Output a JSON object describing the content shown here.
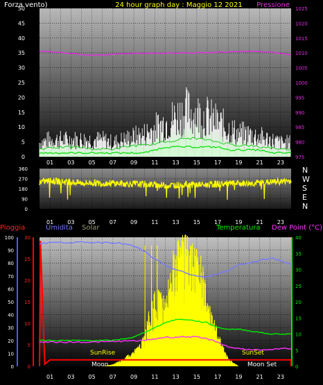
{
  "colors": {
    "wind": "#ffffff",
    "gust": "#ffffff",
    "wind_avg": "#00dd00",
    "pressure": "#e030e0",
    "wind_dir": "#ffff00",
    "rain": "#ff0000",
    "humidity": "#7777ff",
    "solar": "#ffff00",
    "temperature": "#00ee00",
    "dewpoint": "#ff33ff"
  },
  "chart_data": [
    {
      "type": "line",
      "title": "24 hour graph day : Maggio 12 2021",
      "series": [
        {
          "name": "Forza vento",
          "axis": "left",
          "ylim": [
            0,
            50
          ],
          "ticks": [
            "0",
            "5",
            "10",
            "15",
            "20",
            "25",
            "30",
            "35",
            "40",
            "45",
            "50"
          ],
          "x": [
            0,
            1,
            2,
            3,
            4,
            5,
            6,
            7,
            8,
            9,
            10,
            11,
            12,
            13,
            14,
            15,
            16,
            17,
            18,
            19,
            20,
            21,
            22,
            23,
            24
          ],
          "gust": [
            5,
            6,
            6,
            6,
            6,
            6,
            6,
            5,
            6,
            7,
            8,
            10,
            12,
            14,
            16,
            15,
            14,
            12,
            10,
            8,
            8,
            7,
            6,
            5,
            5
          ],
          "mean": [
            2,
            3,
            3,
            3,
            3,
            2,
            2,
            2,
            3,
            4,
            4,
            5,
            6,
            7,
            8,
            8,
            7,
            6,
            5,
            4,
            4,
            3,
            3,
            2,
            2
          ],
          "avg": [
            1,
            1,
            1,
            1,
            1,
            1,
            1,
            1,
            1,
            1,
            1,
            2,
            3,
            3,
            3,
            3,
            3,
            3,
            2,
            2,
            2,
            2,
            1,
            1,
            1
          ]
        },
        {
          "name": "Pressione",
          "axis": "right",
          "ylim": [
            975,
            1025
          ],
          "ticks": [
            "975",
            "980",
            "985",
            "990",
            "995",
            "1000",
            "1005",
            "1010",
            "1015",
            "1020",
            "1025"
          ],
          "x": [
            0,
            1,
            2,
            3,
            4,
            5,
            6,
            7,
            8,
            9,
            10,
            11,
            12,
            13,
            14,
            15,
            16,
            17,
            18,
            19,
            20,
            21,
            22,
            23,
            24
          ],
          "values": [
            1010.5,
            1010.4,
            1010.2,
            1009.8,
            1009.5,
            1009.3,
            1009.3,
            1009.5,
            1009.7,
            1009.8,
            1009.8,
            1009.9,
            1010,
            1010,
            1010,
            1010,
            1010.1,
            1010.2,
            1010.3,
            1010.4,
            1010.5,
            1010.4,
            1010.2,
            1009.8,
            1009.4
          ]
        }
      ],
      "xticks": [
        "01",
        "03",
        "05",
        "07",
        "09",
        "11",
        "13",
        "15",
        "17",
        "19",
        "21",
        "23"
      ],
      "xlabel": "",
      "ylabel": ""
    },
    {
      "type": "line",
      "name": "wind direction",
      "ylim": [
        0,
        360
      ],
      "ticks": [
        "0",
        "90",
        "180",
        "270",
        "360"
      ],
      "compass": [
        "N",
        "W",
        "S",
        "E",
        "N"
      ],
      "x": [
        0,
        1,
        2,
        3,
        4,
        5,
        6,
        7,
        8,
        9,
        10,
        11,
        12,
        13,
        14,
        15,
        16,
        17,
        18,
        19,
        20,
        21,
        22,
        23,
        24
      ],
      "values": [
        240,
        250,
        245,
        238,
        230,
        232,
        228,
        230,
        225,
        222,
        220,
        215,
        210,
        212,
        218,
        216,
        214,
        222,
        224,
        225,
        228,
        232,
        238,
        245,
        250
      ]
    },
    {
      "type": "line",
      "series": [
        {
          "name": "Pioggia",
          "axis": "left_red",
          "ylim": [
            0,
            30
          ],
          "ticks": [
            "0",
            "5",
            "10",
            "15",
            "20",
            "25",
            "30"
          ]
        },
        {
          "name": "Umidita",
          "axis": "left_blue",
          "ylim": [
            0,
            100
          ],
          "ticks": [
            "0",
            "10",
            "20",
            "30",
            "40",
            "50",
            "60",
            "70",
            "80",
            "90",
            "100"
          ],
          "x": [
            0,
            1,
            2,
            3,
            4,
            5,
            6,
            7,
            8,
            9,
            10,
            11,
            12,
            13,
            14,
            15,
            16,
            17,
            18,
            19,
            20,
            21,
            22,
            23,
            24
          ],
          "values": [
            95,
            96,
            96,
            96,
            96,
            96,
            96,
            96,
            95,
            93,
            89,
            83,
            78,
            75,
            72,
            70,
            69,
            72,
            74,
            79,
            80,
            82,
            84,
            82,
            79
          ]
        },
        {
          "name": "Solar",
          "axis": "none",
          "x": [
            6,
            7,
            8,
            9,
            10,
            11,
            12,
            13,
            14,
            15,
            16,
            17,
            18,
            19
          ],
          "values": [
            0,
            5,
            20,
            40,
            80,
            240,
            160,
            300,
            300,
            300,
            180,
            90,
            20,
            0
          ]
        },
        {
          "name": "Temperatura",
          "axis": "right",
          "ylim": [
            0,
            40
          ],
          "ticks": [
            "0",
            "5",
            "10",
            "15",
            "20",
            "25",
            "30",
            "35",
            "40"
          ],
          "x": [
            0,
            1,
            2,
            3,
            4,
            5,
            6,
            7,
            8,
            9,
            10,
            11,
            12,
            13,
            14,
            15,
            16,
            17,
            18,
            19,
            20,
            21,
            22,
            23,
            24
          ],
          "values": [
            8,
            8,
            8,
            8,
            8,
            8,
            8,
            8,
            8.5,
            9,
            10.5,
            12,
            13.5,
            14.5,
            14.5,
            14,
            13.5,
            12,
            11.5,
            11.5,
            11,
            10.5,
            10,
            10,
            10
          ]
        },
        {
          "name": "Dew Point (°C)",
          "axis": "right",
          "x": [
            0,
            1,
            2,
            3,
            4,
            5,
            6,
            7,
            8,
            9,
            10,
            11,
            12,
            13,
            14,
            15,
            16,
            17,
            18,
            19,
            20,
            21,
            22,
            23,
            24
          ],
          "values": [
            7.5,
            7.5,
            7.5,
            7.5,
            7.5,
            7.5,
            7.6,
            7.7,
            7.8,
            7.9,
            8,
            8.5,
            9,
            9,
            9.2,
            9,
            8.5,
            7.5,
            6,
            5.5,
            5.2,
            5,
            5,
            5.5,
            5.5
          ]
        },
        {
          "name": "Pioggia rate",
          "axis": "left_red",
          "x": [
            0,
            0.08,
            0.09,
            0.5,
            1,
            24
          ],
          "values": [
            0,
            29,
            29,
            0.5,
            1.5,
            1.5
          ]
        }
      ],
      "annotations": [
        "SunRise",
        "SunSet",
        "Moon",
        "Moon Set"
      ],
      "xticks": [
        "01",
        "03",
        "05",
        "07",
        "09",
        "11",
        "13",
        "15",
        "17",
        "19",
        "21",
        "23"
      ]
    }
  ],
  "labels": {
    "wind": "Forza vento)",
    "title": "24 hour graph day : Maggio 12 2021",
    "pressure": "Pressione",
    "rain": "Pioggia",
    "humidity": "Umidita",
    "solar": "Solar",
    "temperature": "Temperatura",
    "dewpoint": "Dew Point (°C)"
  }
}
